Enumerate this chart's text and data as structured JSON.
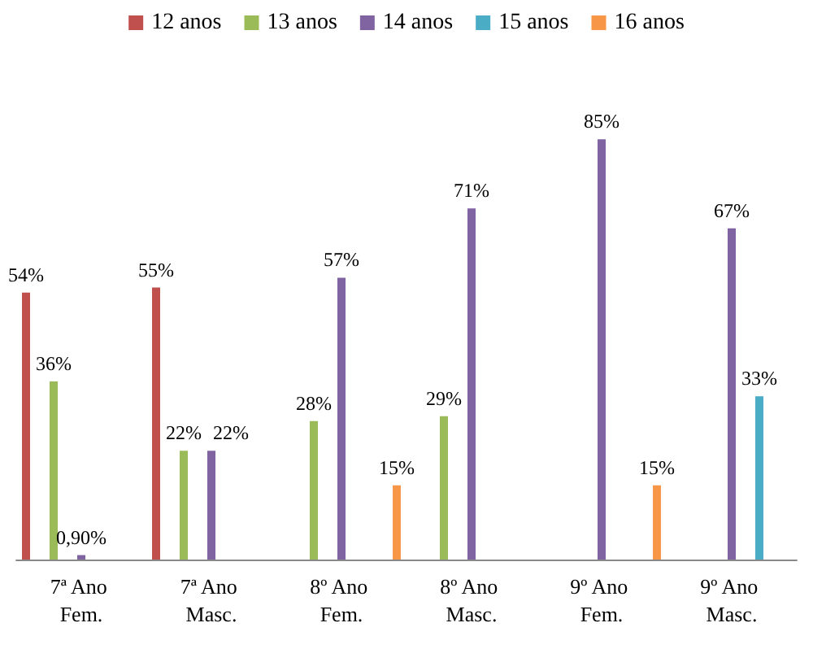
{
  "chart_data": {
    "type": "bar",
    "categories": [
      "7ª Ano Fem.",
      "7ª Ano Masc.",
      "8º Ano Fem.",
      "8º Ano Masc.",
      "9º Ano Fem.",
      "9º Ano Masc."
    ],
    "series": [
      {
        "name": "12 anos",
        "color": "#c0504d",
        "values": [
          54,
          55,
          null,
          null,
          null,
          null
        ],
        "value_labels": [
          "54%",
          "55%",
          null,
          null,
          null,
          null
        ]
      },
      {
        "name": "13 anos",
        "color": "#9bbb59",
        "values": [
          36,
          22,
          28,
          29,
          null,
          null
        ],
        "value_labels": [
          "36%",
          "22%",
          "28%",
          "29%",
          null,
          null
        ]
      },
      {
        "name": "14 anos",
        "color": "#8064a2",
        "values": [
          0.9,
          22,
          57,
          71,
          85,
          67
        ],
        "value_labels": [
          "0,90%",
          "22%",
          "57%",
          "71%",
          "85%",
          "67%"
        ]
      },
      {
        "name": "15 anos",
        "color": "#4bacc6",
        "values": [
          null,
          null,
          null,
          null,
          null,
          33
        ],
        "value_labels": [
          null,
          null,
          null,
          null,
          null,
          "33%"
        ]
      },
      {
        "name": "16 anos",
        "color": "#f79646",
        "values": [
          null,
          null,
          15,
          null,
          15,
          null
        ],
        "value_labels": [
          null,
          null,
          "15%",
          null,
          "15%",
          null
        ]
      }
    ],
    "legend": "top"
  }
}
